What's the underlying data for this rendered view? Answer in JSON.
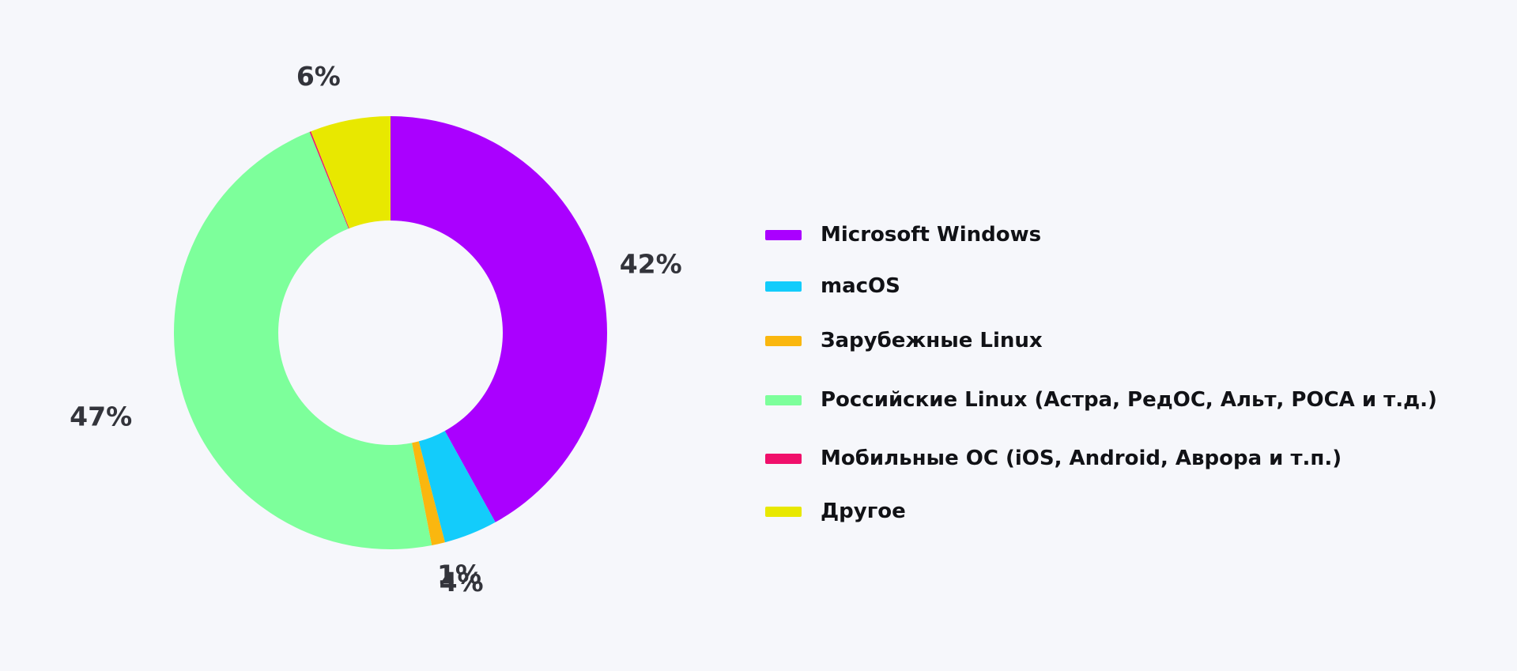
{
  "chart_data": {
    "type": "pie",
    "variant": "donut",
    "start_angle": "12 o'clock",
    "direction": "clockwise",
    "legend_position": "right",
    "slices": [
      {
        "name": "Microsoft Windows",
        "value": 42,
        "label": "42%",
        "color": "#aa00ff"
      },
      {
        "name": "macOS",
        "value": 4,
        "label": "4%",
        "color": "#13ccfb"
      },
      {
        "name": "Зарубежные Linux",
        "value": 1,
        "label": "1%",
        "color": "#fab70f"
      },
      {
        "name": "Российские Linux (Астра, РедОС, Альт, РОСА и т.д.)",
        "value": 47,
        "label": "47%",
        "color": "#7dff9b"
      },
      {
        "name": "Мобильные ОС (iOS, Android, Аврора и т.п.)",
        "value": 0.1,
        "label": "",
        "color": "#f0106b"
      },
      {
        "name": "Другое",
        "value": 6,
        "label": "6%",
        "color": "#e8e800"
      }
    ]
  }
}
